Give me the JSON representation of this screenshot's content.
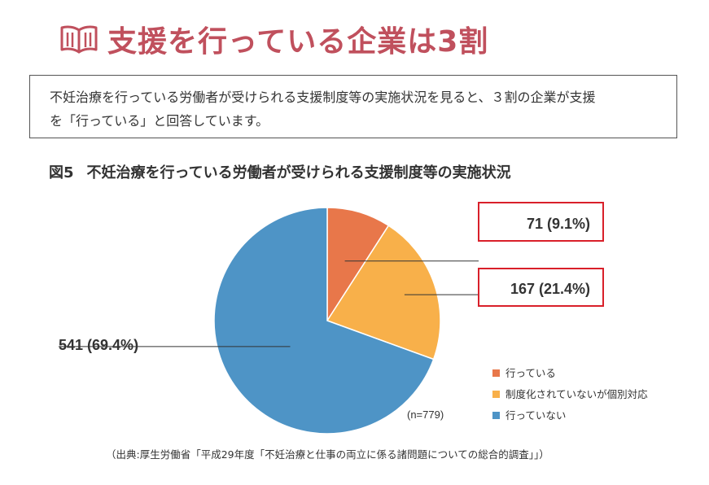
{
  "heading": {
    "title": "支援を行っている企業は3割",
    "icon": "book-icon"
  },
  "summary": {
    "line1": "不妊治療を行っている労働者が受けられる支援制度等の実施状況を見ると、３割の企業が支援",
    "line2": "を「行っている」と回答しています。"
  },
  "figure": {
    "number": "図5",
    "title": "不妊治療を行っている労働者が受けられる支援制度等の実施状況",
    "sample": "(n=779)",
    "source": "（出典:厚生労働省「平成29年度「不妊治療と仕事の両立に係る諸問題についての総合的調査」」）"
  },
  "colors": {
    "heading": "#c0505d",
    "highlight_box": "#d9202a"
  },
  "chart_data": {
    "type": "pie",
    "title": "不妊治療を行っている労働者が受けられる支援制度等の実施状況",
    "total_label": "(n=779)",
    "slices": [
      {
        "name": "行っている",
        "value": 71,
        "percent": 9.1,
        "label": "71 (9.1%)",
        "color": "#e8774a",
        "highlighted": true
      },
      {
        "name": "制度化されていないが個別対応",
        "value": 167,
        "percent": 21.4,
        "label": "167 (21.4%)",
        "color": "#f8b04a",
        "highlighted": true
      },
      {
        "name": "行っていない",
        "value": 541,
        "percent": 69.4,
        "label": "541 (69.4%)",
        "color": "#4e94c6",
        "highlighted": false
      }
    ],
    "legend": {
      "position": "bottom-right",
      "items": [
        "行っている",
        "制度化されていないが個別対応",
        "行っていない"
      ]
    }
  }
}
